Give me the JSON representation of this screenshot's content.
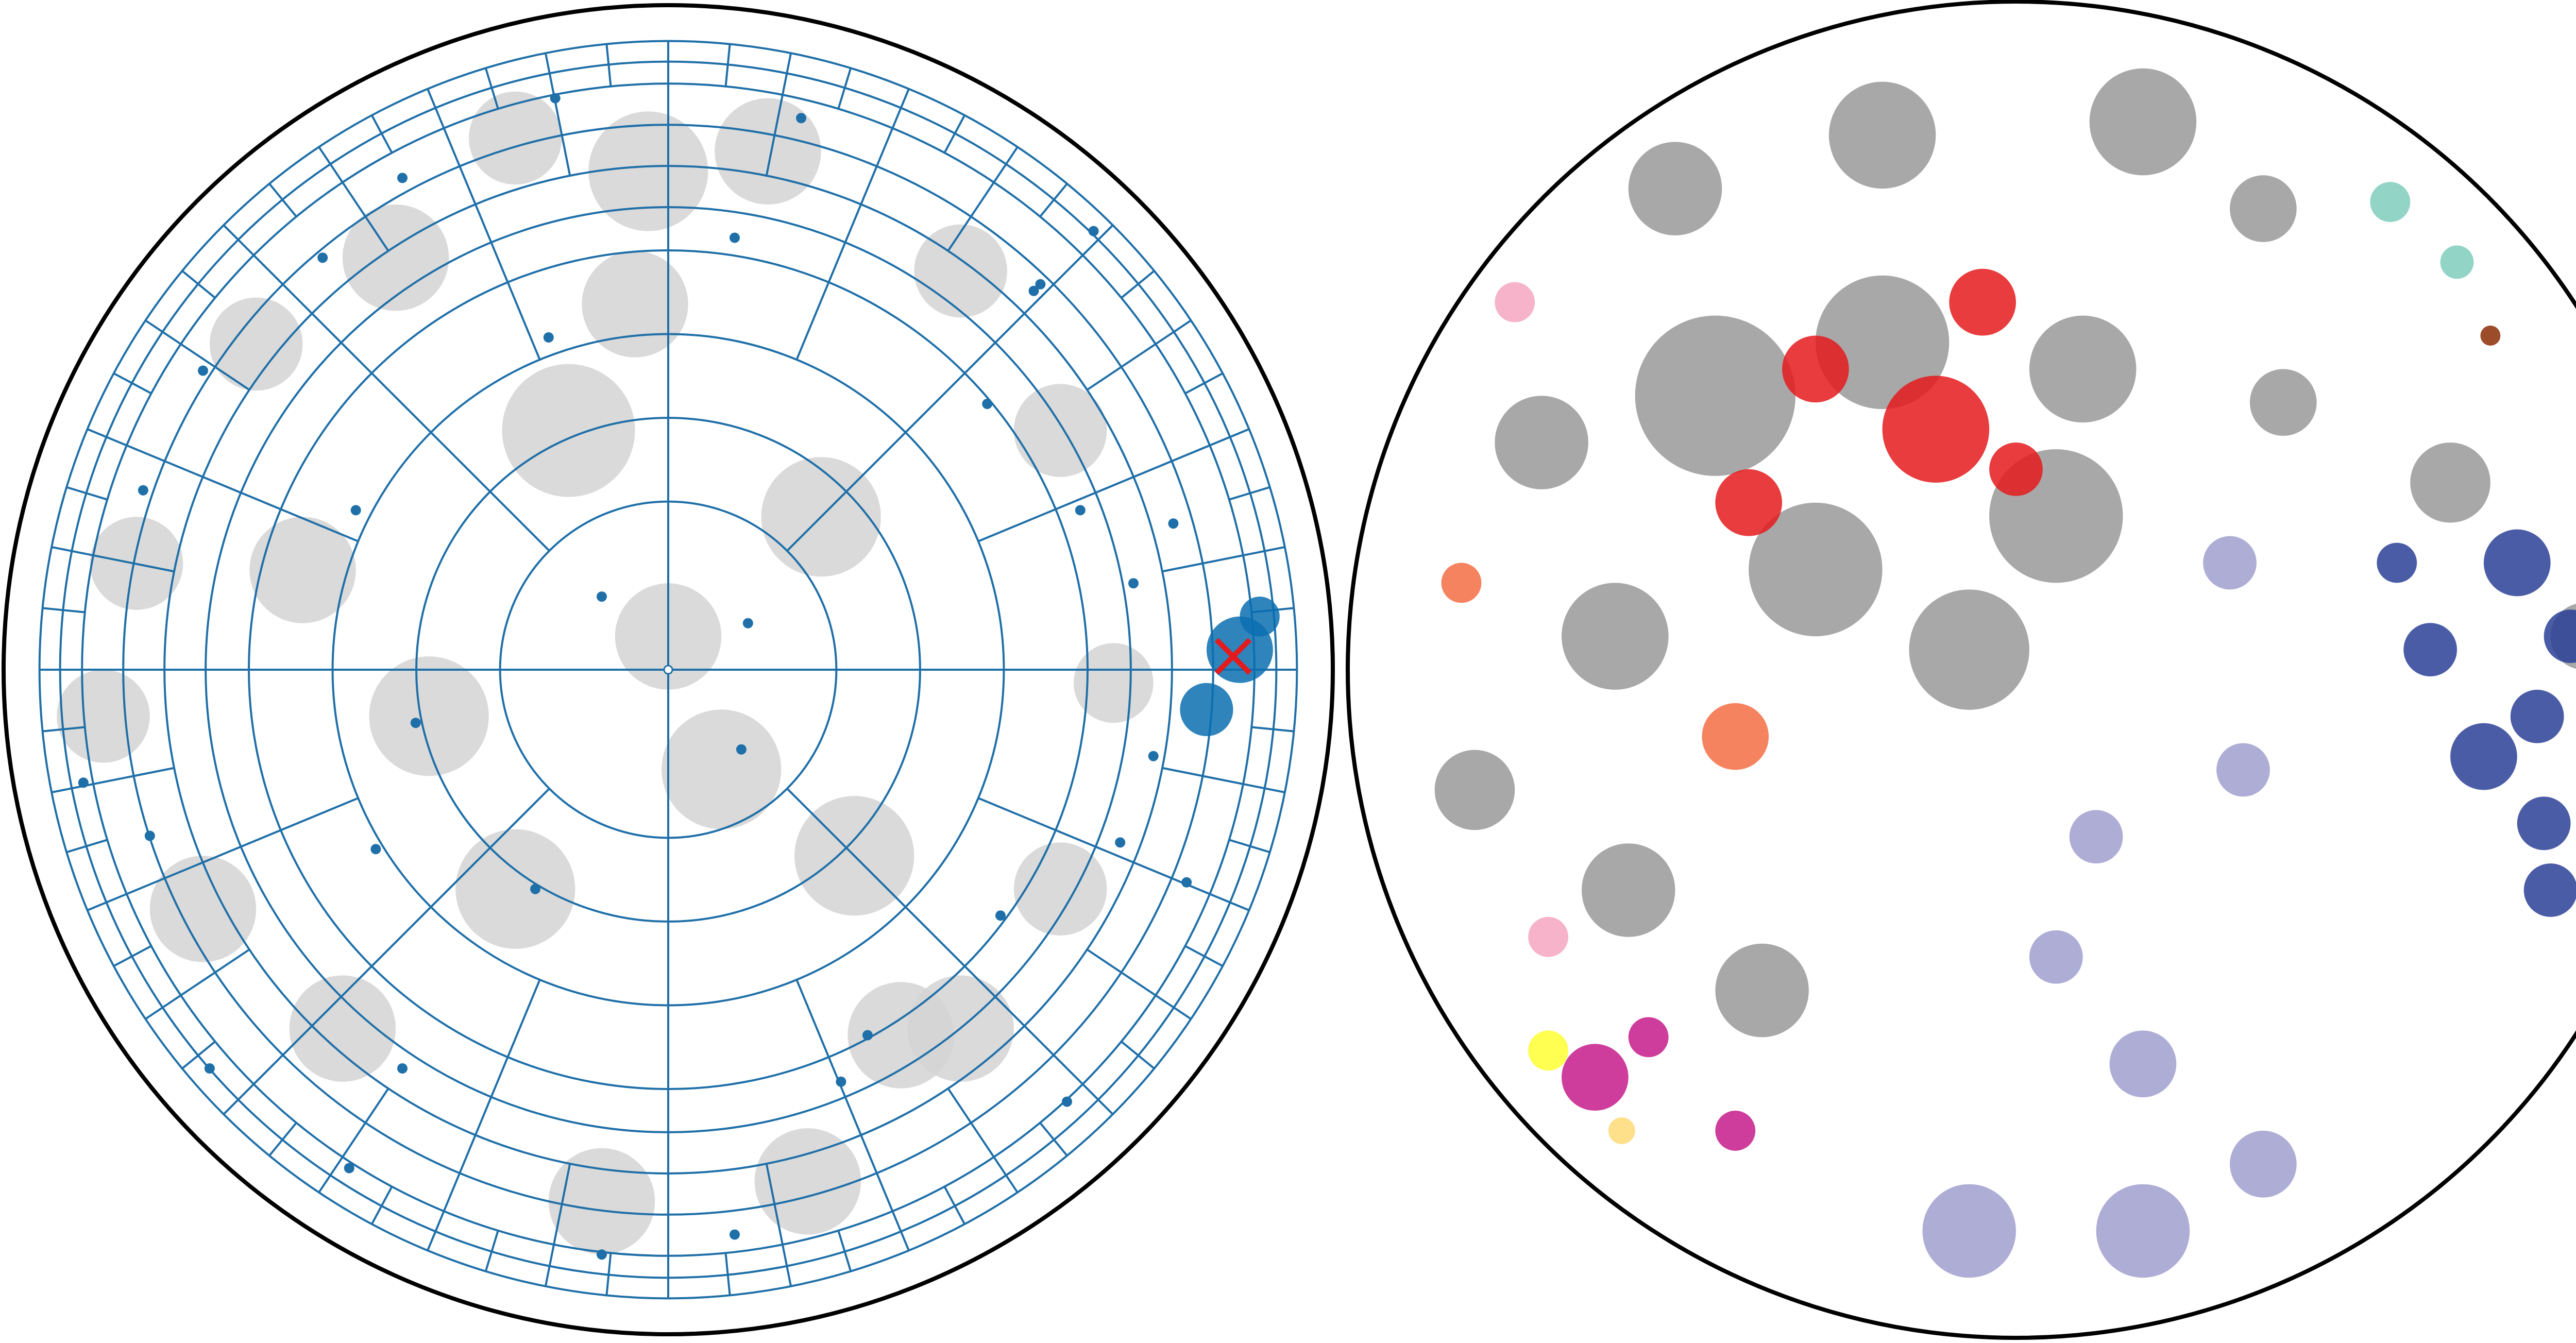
{
  "chart_data": [
    {
      "type": "scatter",
      "grid": true,
      "xlim": [
        -1,
        1
      ],
      "ylim": [
        -1,
        1
      ],
      "series": [
        {
          "color": "#d3d3d3",
          "x": [
            -0.03,
            -0.23,
            0.15,
            -0.41,
            -0.62,
            -0.8,
            -0.85,
            -0.7,
            -0.49,
            -0.1,
            0.21,
            0.44,
            0.59,
            0.67,
            0.59,
            0.44,
            -0.15,
            0.08,
            -0.36,
            0.23,
            -0.23,
            0.28,
            0.0,
            -0.05,
            0.35,
            -0.55
          ],
          "y": [
            0.75,
            0.8,
            0.78,
            0.62,
            0.49,
            0.16,
            -0.07,
            -0.36,
            -0.54,
            -0.8,
            -0.77,
            -0.54,
            -0.33,
            -0.02,
            0.36,
            0.6,
            0.36,
            -0.15,
            -0.07,
            0.23,
            -0.33,
            -0.28,
            0.05,
            0.55,
            -0.55,
            0.15
          ],
          "sizes": [
            0.09,
            0.07,
            0.08,
            0.08,
            0.07,
            0.07,
            0.07,
            0.08,
            0.08,
            0.08,
            0.08,
            0.08,
            0.07,
            0.06,
            0.07,
            0.07,
            0.1,
            0.09,
            0.09,
            0.09,
            0.09,
            0.09,
            0.08,
            0.08,
            0.08,
            0.08
          ]
        },
        {
          "color": "#1f6fa8",
          "x": [
            0.64,
            0.55,
            0.2,
            -0.17,
            -0.4,
            -0.52,
            -0.7,
            -0.79,
            -0.88,
            -0.78,
            -0.69,
            -0.48,
            -0.1,
            0.1,
            0.26,
            0.5,
            0.68,
            0.78,
            0.73,
            0.7,
            0.62,
            0.48,
            0.1,
            -0.18,
            -0.47,
            -0.44,
            -0.4,
            -0.2,
            0.11,
            -0.1,
            0.12,
            -0.38,
            0.3,
            0.56,
            0.6,
            0.76
          ],
          "y": [
            0.66,
            0.57,
            0.83,
            0.86,
            0.74,
            0.62,
            0.45,
            0.27,
            -0.17,
            -0.25,
            -0.6,
            -0.75,
            -0.88,
            -0.85,
            -0.62,
            -0.37,
            -0.26,
            -0.32,
            -0.13,
            0.13,
            0.24,
            0.4,
            0.65,
            0.5,
            0.24,
            -0.27,
            -0.6,
            -0.33,
            -0.12,
            0.11,
            0.07,
            -0.08,
            -0.55,
            0.58,
            -0.65,
            0.22
          ]
        },
        {
          "color": "#0b6eb0",
          "x": [
            0.86,
            0.81,
            0.89
          ],
          "y": [
            0.03,
            -0.06,
            0.08
          ],
          "sizes": [
            0.05,
            0.04,
            0.03
          ]
        },
        {
          "color": "#e41a1c",
          "marker": "x",
          "x": [
            0.85
          ],
          "y": [
            0.02
          ]
        }
      ]
    },
    {
      "type": "scatter",
      "xlim": [
        -1,
        1
      ],
      "ylim": [
        -1,
        1
      ],
      "series": [
        {
          "color": "#999999",
          "x": [
            -0.45,
            -0.2,
            0.19,
            -0.51,
            -0.2,
            0.37,
            -0.81,
            -0.58,
            -0.38,
            -0.07,
            -0.71,
            0.06,
            0.85,
            0.65,
            -0.3,
            0.1,
            -0.6,
            0.4
          ],
          "y": [
            0.41,
            0.49,
            0.82,
            0.72,
            0.8,
            0.69,
            -0.18,
            -0.33,
            -0.48,
            0.03,
            0.34,
            0.23,
            0.05,
            0.28,
            0.15,
            0.45,
            0.05,
            0.4
          ],
          "sizes": [
            0.12,
            0.1,
            0.08,
            0.07,
            0.08,
            0.05,
            0.06,
            0.07,
            0.07,
            0.09,
            0.07,
            0.1,
            0.05,
            0.06,
            0.1,
            0.08,
            0.08,
            0.05
          ]
        },
        {
          "color": "#e41a1c",
          "x": [
            -0.12,
            -0.3,
            -0.05,
            -0.4,
            0.0
          ],
          "y": [
            0.36,
            0.45,
            0.55,
            0.25,
            0.3
          ],
          "sizes": [
            0.08,
            0.05,
            0.05,
            0.05,
            0.04
          ]
        },
        {
          "color": "#a09fcf",
          "x": [
            -0.07,
            0.19,
            0.37,
            0.19,
            0.06,
            0.32,
            0.34,
            0.12
          ],
          "y": [
            -0.84,
            -0.84,
            -0.74,
            -0.59,
            -0.43,
            0.16,
            -0.15,
            -0.25
          ],
          "sizes": [
            0.07,
            0.07,
            0.05,
            0.05,
            0.04,
            0.04,
            0.04,
            0.04
          ]
        },
        {
          "color": "#2b3f97",
          "x": [
            0.75,
            0.83,
            0.78,
            0.7,
            0.62,
            0.57,
            0.8,
            0.79
          ],
          "y": [
            0.16,
            0.05,
            -0.07,
            -0.13,
            0.03,
            0.16,
            -0.33,
            -0.23
          ],
          "sizes": [
            0.05,
            0.04,
            0.04,
            0.05,
            0.04,
            0.03,
            0.04,
            0.04
          ]
        },
        {
          "color": "#7fcdbb",
          "x": [
            0.56,
            0.66
          ],
          "y": [
            0.7,
            0.61
          ],
          "sizes": [
            0.03,
            0.025
          ]
        },
        {
          "color": "#8c2d04",
          "x": [
            0.71
          ],
          "y": [
            0.5
          ],
          "sizes": [
            0.015
          ]
        },
        {
          "color": "#c51b8a",
          "x": [
            -0.63,
            -0.42,
            -0.55
          ],
          "y": [
            -0.61,
            -0.69,
            -0.55
          ],
          "sizes": [
            0.05,
            0.03,
            0.03
          ]
        },
        {
          "color": "#ffff33",
          "x": [
            -0.7
          ],
          "y": [
            -0.57
          ],
          "sizes": [
            0.03
          ]
        },
        {
          "color": "#fed976",
          "x": [
            -0.59
          ],
          "y": [
            -0.69
          ],
          "sizes": [
            0.02
          ]
        },
        {
          "color": "#f46d43",
          "x": [
            -0.42,
            -0.83
          ],
          "y": [
            -0.1,
            0.13
          ],
          "sizes": [
            0.05,
            0.03
          ]
        },
        {
          "color": "#f4a6c0",
          "x": [
            -0.75,
            -0.7
          ],
          "y": [
            0.55,
            -0.4
          ],
          "sizes": [
            0.03,
            0.03
          ]
        }
      ]
    }
  ]
}
